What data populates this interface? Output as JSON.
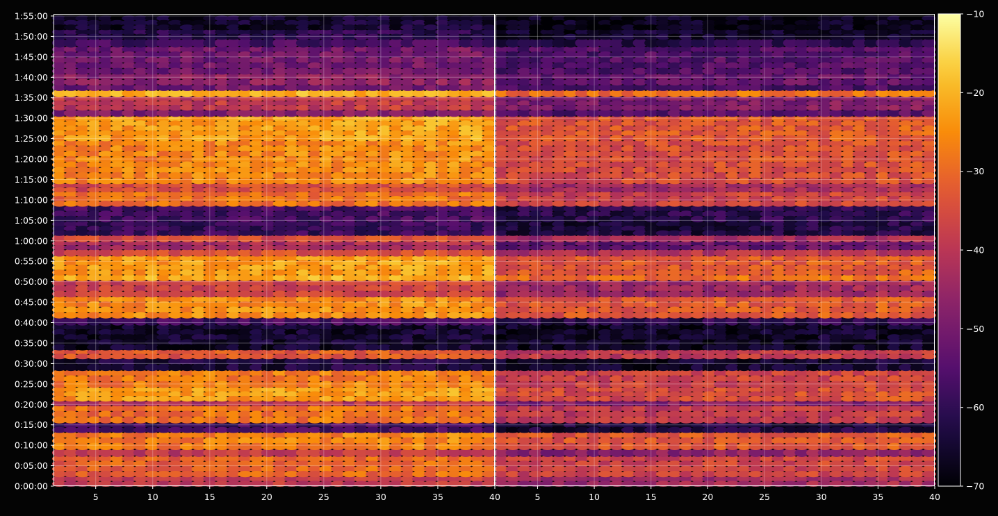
{
  "chart_data": {
    "type": "heatmap",
    "title": "",
    "xlabel": "",
    "ylabel": "",
    "colormap": "inferno",
    "background": "#040404",
    "grid": true,
    "panels": [
      {
        "name": "",
        "xlim": [
          1.3,
          40
        ],
        "xticks": [
          5,
          10,
          15,
          20,
          25,
          30,
          35,
          40
        ]
      },
      {
        "name": "",
        "xlim": [
          1.3,
          40
        ],
        "xticks": [
          5,
          10,
          15,
          20,
          25,
          30,
          35,
          40
        ]
      }
    ],
    "y_axis": {
      "unit": "seconds",
      "ylim": [
        0,
        6900
      ],
      "ticks": [
        {
          "value": 0,
          "label": "0:00:00"
        },
        {
          "value": 300,
          "label": "0:05:00"
        },
        {
          "value": 600,
          "label": "0:10:00"
        },
        {
          "value": 900,
          "label": "0:15:00"
        },
        {
          "value": 1200,
          "label": "0:20:00"
        },
        {
          "value": 1500,
          "label": "0:25:00"
        },
        {
          "value": 1800,
          "label": "0:30:00"
        },
        {
          "value": 2100,
          "label": "0:35:00"
        },
        {
          "value": 2400,
          "label": "0:40:00"
        },
        {
          "value": 2700,
          "label": "0:45:00"
        },
        {
          "value": 3000,
          "label": "0:50:00"
        },
        {
          "value": 3300,
          "label": "0:55:00"
        },
        {
          "value": 3600,
          "label": "1:00:00"
        },
        {
          "value": 3900,
          "label": "1:05:00"
        },
        {
          "value": 4200,
          "label": "1:10:00"
        },
        {
          "value": 4500,
          "label": "1:15:00"
        },
        {
          "value": 4800,
          "label": "1:20:00"
        },
        {
          "value": 5100,
          "label": "1:25:00"
        },
        {
          "value": 5400,
          "label": "1:30:00"
        },
        {
          "value": 5700,
          "label": "1:35:00"
        },
        {
          "value": 6000,
          "label": "1:40:00"
        },
        {
          "value": 6300,
          "label": "1:45:00"
        },
        {
          "value": 6600,
          "label": "1:50:00"
        },
        {
          "value": 6900,
          "label": "1:55:00"
        }
      ]
    },
    "colorbar": {
      "range": [
        -70,
        -10
      ],
      "ticks": [
        {
          "value": -10,
          "label": "−10"
        },
        {
          "value": -20,
          "label": "−20"
        },
        {
          "value": -30,
          "label": "−30"
        },
        {
          "value": -40,
          "label": "−40"
        },
        {
          "value": -50,
          "label": "−50"
        },
        {
          "value": -60,
          "label": "−60"
        },
        {
          "value": -70,
          "label": "−70"
        }
      ]
    },
    "bands": [
      {
        "from": 0,
        "to": 140,
        "left": -40,
        "right": -45
      },
      {
        "from": 140,
        "to": 440,
        "left": -32,
        "right": -38
      },
      {
        "from": 440,
        "to": 540,
        "left": -40,
        "right": -48
      },
      {
        "from": 540,
        "to": 790,
        "left": -28,
        "right": -34
      },
      {
        "from": 790,
        "to": 930,
        "left": -58,
        "right": -64
      },
      {
        "from": 930,
        "to": 1180,
        "left": -30,
        "right": -40
      },
      {
        "from": 1180,
        "to": 1250,
        "left": -42,
        "right": -50
      },
      {
        "from": 1250,
        "to": 1450,
        "left": -24,
        "right": -36
      },
      {
        "from": 1450,
        "to": 1700,
        "left": -28,
        "right": -38
      },
      {
        "from": 1700,
        "to": 1870,
        "left": -64,
        "right": -66
      },
      {
        "from": 1870,
        "to": 2000,
        "left": -34,
        "right": -40
      },
      {
        "from": 2000,
        "to": 2370,
        "left": -66,
        "right": -67
      },
      {
        "from": 2370,
        "to": 2470,
        "left": -58,
        "right": -62
      },
      {
        "from": 2470,
        "to": 2780,
        "left": -26,
        "right": -34
      },
      {
        "from": 2780,
        "to": 3020,
        "left": -38,
        "right": -46
      },
      {
        "from": 3020,
        "to": 3100,
        "left": -22,
        "right": -30
      },
      {
        "from": 3100,
        "to": 3380,
        "left": -24,
        "right": -34
      },
      {
        "from": 3380,
        "to": 3470,
        "left": -36,
        "right": -42
      },
      {
        "from": 3470,
        "to": 3590,
        "left": -44,
        "right": -54
      },
      {
        "from": 3590,
        "to": 3680,
        "left": -36,
        "right": -44
      },
      {
        "from": 3680,
        "to": 3880,
        "left": -60,
        "right": -64
      },
      {
        "from": 3880,
        "to": 4110,
        "left": -58,
        "right": -62
      },
      {
        "from": 4110,
        "to": 4320,
        "left": -30,
        "right": -38
      },
      {
        "from": 4320,
        "to": 4440,
        "left": -36,
        "right": -44
      },
      {
        "from": 4440,
        "to": 5070,
        "left": -27,
        "right": -36
      },
      {
        "from": 5070,
        "to": 5430,
        "left": -24,
        "right": -34
      },
      {
        "from": 5430,
        "to": 5520,
        "left": -50,
        "right": -56
      },
      {
        "from": 5520,
        "to": 5720,
        "left": -40,
        "right": -50
      },
      {
        "from": 5720,
        "to": 5810,
        "left": -22,
        "right": -30
      },
      {
        "from": 5810,
        "to": 5890,
        "left": -52,
        "right": -58
      },
      {
        "from": 5890,
        "to": 6050,
        "left": -48,
        "right": -54
      },
      {
        "from": 6050,
        "to": 6450,
        "left": -52,
        "right": -56
      },
      {
        "from": 6450,
        "to": 6560,
        "left": -58,
        "right": -62
      },
      {
        "from": 6560,
        "to": 6700,
        "left": -62,
        "right": -66
      },
      {
        "from": 6700,
        "to": 6900,
        "left": -66,
        "right": -68
      }
    ]
  }
}
